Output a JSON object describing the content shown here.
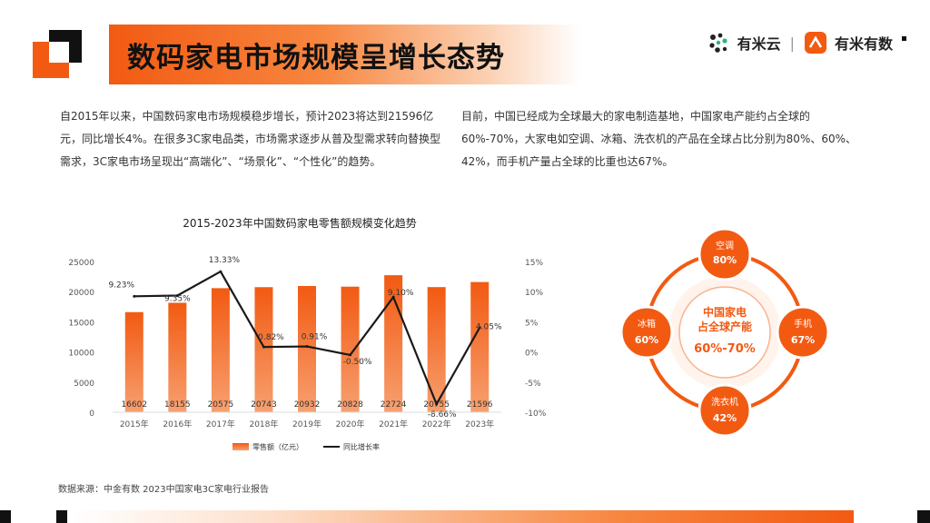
{
  "header": {
    "title": "数码家电市场规模呈增长态势",
    "logo1": "有米云",
    "logo_separator": "|",
    "logo2": "有米有数"
  },
  "paragraphs": {
    "left": "自2015年以来，中国数码家电市场规模稳步增长，预计2023将达到21596亿元，同比增长4%。在很多3C家电品类，市场需求逐步从普及型需求转向替换型需求，3C家电市场呈现出“高端化”、“场景化”、“个性化”的趋势。",
    "right": "目前，中国已经成为全球最大的家电制造基地，中国家电产能约占全球的60%-70%，大家电如空调、冰箱、洗衣机的产品在全球占比分别为80%、60%、42%，而手机产量占全球的比重也达67%。"
  },
  "chart_data": {
    "type": "bar",
    "title": "2015-2023年中国数码家电零售额规模变化趋势",
    "categories": [
      "2015年",
      "2016年",
      "2017年",
      "2018年",
      "2019年",
      "2020年",
      "2021年",
      "2022年",
      "2023年"
    ],
    "series": [
      {
        "name": "零售额（亿元）",
        "type": "bar",
        "axis": "left",
        "values": [
          16602,
          18155,
          20575,
          20743,
          20932,
          20828,
          22724,
          20755,
          21596
        ],
        "labels": [
          "16602",
          "18155",
          "20575",
          "20743",
          "20932",
          "20828",
          "22724",
          "20755",
          "21596"
        ],
        "color": "#f25a12"
      },
      {
        "name": "同比增长率",
        "type": "line",
        "axis": "right",
        "values": [
          9.23,
          9.35,
          13.33,
          0.82,
          0.91,
          -0.5,
          9.1,
          -8.66,
          4.05
        ],
        "labels": [
          "9.23%",
          "9.35%",
          "13.33%",
          "0.82%",
          "0.91%",
          "-0.50%",
          "9.10%",
          "-8.66%",
          "4.05%"
        ],
        "color": "#1a1a1a"
      }
    ],
    "y_left": {
      "min": 0,
      "max": 25000,
      "ticks": [
        "0",
        "5000",
        "10000",
        "15000",
        "20000",
        "25000"
      ]
    },
    "y_right": {
      "min": -10,
      "max": 15,
      "ticks": [
        "-10%",
        "-5%",
        "0%",
        "5%",
        "10%",
        "15%"
      ]
    },
    "grid": false,
    "legend_position": "bottom"
  },
  "global_share": {
    "center_line1": "中国家电",
    "center_line2": "占全球产能",
    "center_value": "60%-70%",
    "items": [
      {
        "label": "空调",
        "value": "80%"
      },
      {
        "label": "手机",
        "value": "67%"
      },
      {
        "label": "洗衣机",
        "value": "42%"
      },
      {
        "label": "冰箱",
        "value": "60%"
      }
    ],
    "accent_color": "#f25a12"
  },
  "source": "数据来源：中金有数 2023中国家电3C家电行业报告"
}
